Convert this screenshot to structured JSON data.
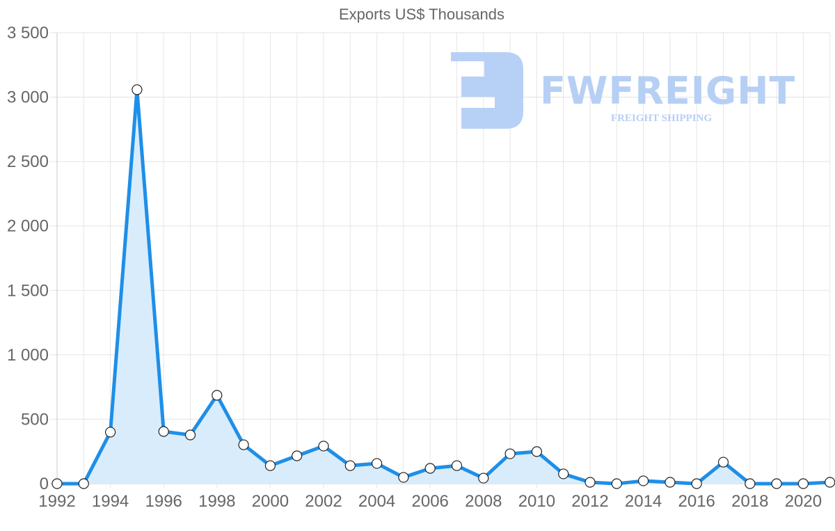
{
  "chart_data": {
    "type": "line",
    "title": "Exports US$ Thousands",
    "xlabel": "",
    "ylabel": "",
    "ylim": [
      0,
      3500
    ],
    "yticks": [
      "0",
      "500",
      "1 000",
      "1 500",
      "2 000",
      "2 500",
      "3 000",
      "3 500"
    ],
    "xticks": [
      "1992",
      "1994",
      "1996",
      "1998",
      "2000",
      "2002",
      "2004",
      "2006",
      "2008",
      "2010",
      "2012",
      "2014",
      "2016",
      "2018",
      "2020"
    ],
    "grid": true,
    "legend": "none",
    "fill": true,
    "x": [
      1992,
      1993,
      1994,
      1995,
      1996,
      1997,
      1998,
      1999,
      2000,
      2001,
      2002,
      2003,
      2004,
      2005,
      2006,
      2007,
      2008,
      2009,
      2010,
      2011,
      2012,
      2013,
      2014,
      2015,
      2016,
      2017,
      2018,
      2019,
      2020,
      2021
    ],
    "series": [
      {
        "name": "Exports US$ Thousands",
        "color": "#1e8fe8",
        "fill_color": "#d9ecfc",
        "values": [
          0,
          0,
          400,
          3058,
          405,
          378,
          686,
          302,
          140,
          216,
          292,
          140,
          157,
          49,
          119,
          140,
          43,
          232,
          249,
          76,
          11,
          0,
          22,
          11,
          0,
          167,
          0,
          0,
          0,
          11
        ]
      }
    ]
  },
  "watermark": {
    "brand": "FWFREIGHT",
    "tagline": "FREIGHT SHIPPING"
  }
}
